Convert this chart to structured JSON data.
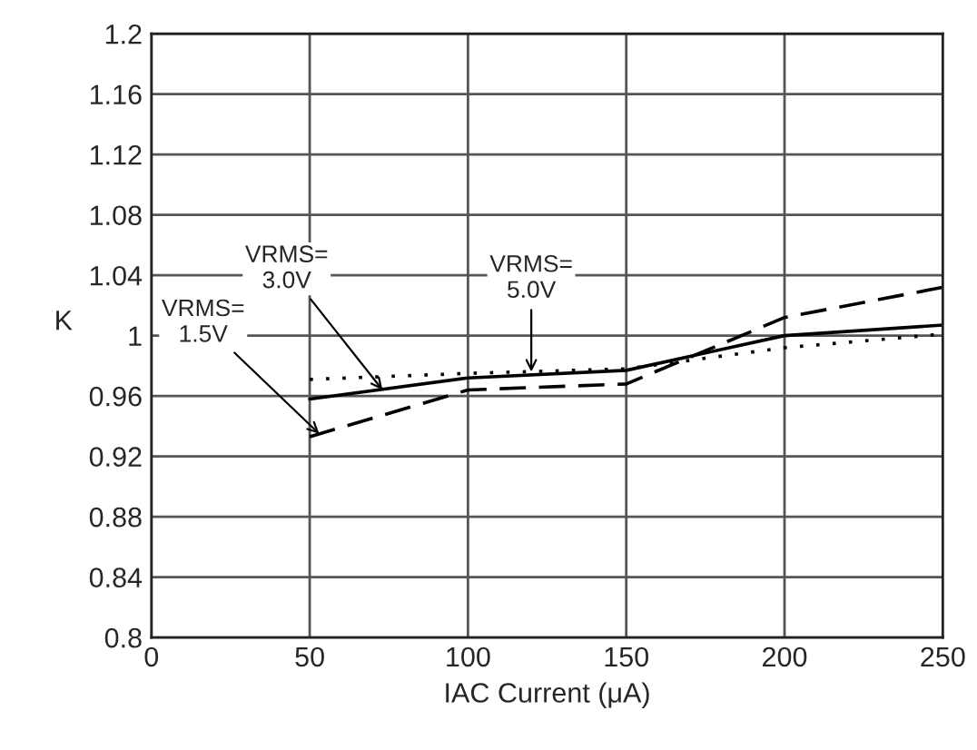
{
  "chart_data": {
    "type": "line",
    "xlabel": "IAC Current (μA)",
    "ylabel": "K",
    "x": [
      50,
      100,
      150,
      200,
      250
    ],
    "series": [
      {
        "color": "#000000",
        "line_style": "solid",
        "values": [
          0.958,
          0.972,
          0.977,
          1.0,
          1.007
        ]
      },
      {
        "color": "#000000",
        "line_style": "dotted",
        "values": [
          0.971,
          0.975,
          0.978,
          0.992,
          1.001
        ]
      },
      {
        "color": "#000000",
        "line_style": "dashed",
        "values": [
          0.933,
          0.964,
          0.968,
          1.012,
          1.032
        ]
      }
    ],
    "annotations": [
      {
        "text": "VRMS=\n1.5V",
        "x": 53,
        "y": 0.935
      },
      {
        "text": "VRMS=\n3.0V",
        "x": 73,
        "y": 0.964
      },
      {
        "text": "VRMS=\n5.0V",
        "x": 120,
        "y": 0.976
      }
    ],
    "xlim": [
      0,
      250
    ],
    "xticks": [
      0,
      50,
      100,
      150,
      200,
      250
    ],
    "ylim": [
      0.8,
      1.2
    ],
    "yticks": [
      0.8,
      0.84,
      0.88,
      0.92,
      0.96,
      1,
      1.04,
      1.08,
      1.12,
      1.16,
      1.2
    ],
    "grid": true,
    "marker": "none",
    "legend": false
  }
}
